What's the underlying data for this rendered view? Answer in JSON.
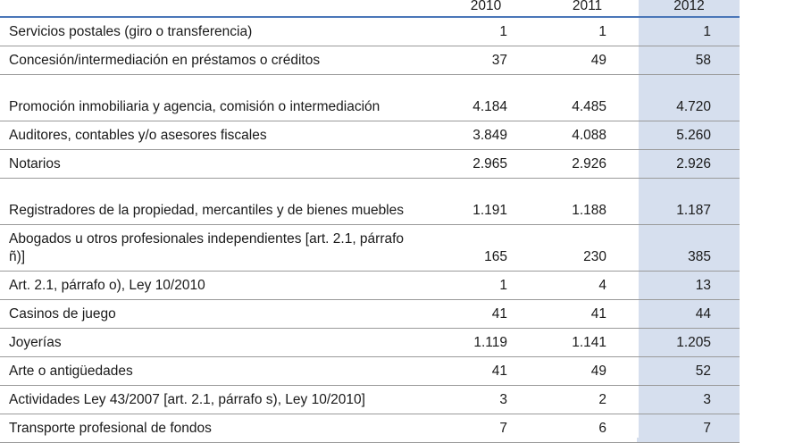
{
  "table": {
    "headers": [
      "",
      "2010",
      "2011",
      "2012"
    ],
    "rows": [
      {
        "label": "Servicios postales (giro o transferencia)",
        "v2010": "1",
        "v2011": "1",
        "v2012": "1"
      },
      {
        "label": "Concesión/intermediación en préstamos o créditos",
        "v2010": "37",
        "v2011": "49",
        "v2012": "58"
      },
      {
        "label": "Promoción inmobiliaria y agencia, comisión o intermediación",
        "v2010": "4.184",
        "v2011": "4.485",
        "v2012": "4.720"
      },
      {
        "label": "Auditores, contables y/o asesores fiscales",
        "v2010": "3.849",
        "v2011": "4.088",
        "v2012": "5.260"
      },
      {
        "label": "Notarios",
        "v2010": "2.965",
        "v2011": "2.926",
        "v2012": "2.926"
      },
      {
        "label": "Registradores de la propiedad, mercantiles y de bienes muebles",
        "v2010": "1.191",
        "v2011": "1.188",
        "v2012": "1.187"
      },
      {
        "label": "Abogados u otros profesionales independientes [art. 2.1, párrafo ñ)]",
        "v2010": "165",
        "v2011": "230",
        "v2012": "385"
      },
      {
        "label": "Art. 2.1, párrafo o), Ley 10/2010",
        "v2010": "1",
        "v2011": "4",
        "v2012": "13"
      },
      {
        "label": "Casinos de juego",
        "v2010": "41",
        "v2011": "41",
        "v2012": "44"
      },
      {
        "label": "Joyerías",
        "v2010": "1.119",
        "v2011": "1.141",
        "v2012": "1.205"
      },
      {
        "label": "Arte o antigüedades",
        "v2010": "41",
        "v2011": "49",
        "v2012": "52"
      },
      {
        "label": "Actividades Ley 43/2007 [art. 2.1, párrafo s), Ley 10/2010]",
        "v2010": "3",
        "v2011": "2",
        "v2012": "3"
      },
      {
        "label": "Transporte profesional de fondos",
        "v2010": "7",
        "v2011": "6",
        "v2012": "7"
      }
    ]
  },
  "colors": {
    "highlight_column": "#d6dfee",
    "header_rule": "#4a76b8",
    "row_rule": "#9a9a9a"
  }
}
